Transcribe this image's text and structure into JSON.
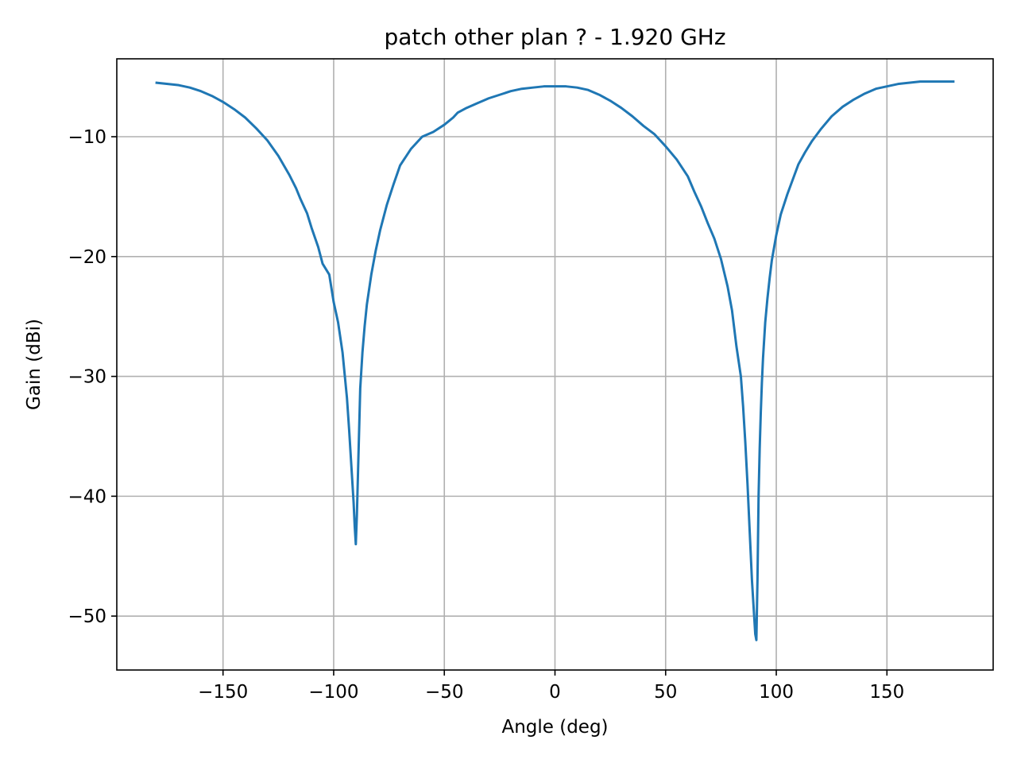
{
  "chart_data": {
    "type": "line",
    "title": "patch other plan ? - 1.920 GHz",
    "xlabel": "Angle (deg)",
    "ylabel": "Gain (dBi)",
    "xlim": [
      -198,
      198
    ],
    "ylim": [
      -54.5,
      -3.5
    ],
    "xticks": [
      -150,
      -100,
      -50,
      0,
      50,
      100,
      150
    ],
    "yticks": [
      -10,
      -20,
      -30,
      -40,
      -50
    ],
    "xtick_labels": [
      "−150",
      "−100",
      "−50",
      "0",
      "50",
      "100",
      "150"
    ],
    "ytick_labels": [
      "−10",
      "−20",
      "−30",
      "−40",
      "−50"
    ],
    "grid": true,
    "line_color": "#1f77b4",
    "grid_color": "#b0b0b0",
    "series": [
      {
        "x": [
          -180,
          -175,
          -170,
          -165,
          -160,
          -155,
          -150,
          -145,
          -140,
          -135,
          -130,
          -125,
          -120,
          -117,
          -115,
          -112,
          -110,
          -107,
          -105,
          -102,
          -100,
          -98,
          -96,
          -94,
          -93,
          -92,
          -91,
          -90.5,
          -90,
          -89.5,
          -89,
          -88.5,
          -88,
          -87,
          -86,
          -85,
          -83,
          -81,
          -79,
          -76,
          -73,
          -70,
          -65,
          -60,
          -55,
          -50,
          -48,
          -46,
          -44,
          -42,
          -40,
          -35,
          -30,
          -25,
          -20,
          -15,
          -10,
          -5,
          0,
          5,
          10,
          15,
          20,
          25,
          30,
          35,
          40,
          45,
          50,
          55,
          60,
          63,
          66,
          69,
          72,
          75,
          78,
          80,
          82,
          84,
          85,
          86,
          87,
          88,
          89,
          90,
          90.5,
          91,
          91.5,
          92,
          92.5,
          93,
          93.5,
          94,
          95,
          96,
          97,
          98,
          100,
          102,
          105,
          108,
          110,
          113,
          116,
          120,
          125,
          130,
          135,
          140,
          145,
          150,
          155,
          160,
          165,
          170,
          175,
          180
        ],
        "y": [
          -5.5,
          -5.6,
          -5.7,
          -5.9,
          -6.2,
          -6.6,
          -7.1,
          -7.7,
          -8.4,
          -9.3,
          -10.3,
          -11.6,
          -13.2,
          -14.3,
          -15.2,
          -16.4,
          -17.6,
          -19.2,
          -20.6,
          -21.5,
          -23.8,
          -25.5,
          -28.0,
          -31.8,
          -34.5,
          -37.5,
          -40.5,
          -42.5,
          -44.0,
          -41.5,
          -38.0,
          -34.5,
          -31.0,
          -28.0,
          -25.8,
          -24.0,
          -21.5,
          -19.5,
          -17.8,
          -15.7,
          -14.0,
          -12.4,
          -11.0,
          -10.0,
          -9.6,
          -9.0,
          -8.7,
          -8.4,
          -8.0,
          -7.8,
          -7.6,
          -7.2,
          -6.8,
          -6.5,
          -6.2,
          -6.0,
          -5.9,
          -5.8,
          -5.8,
          -5.8,
          -5.9,
          -6.1,
          -6.5,
          -7.0,
          -7.6,
          -8.3,
          -9.1,
          -9.8,
          -10.8,
          -11.9,
          -13.3,
          -14.6,
          -15.8,
          -17.2,
          -18.5,
          -20.2,
          -22.5,
          -24.5,
          -27.5,
          -30.0,
          -32.5,
          -35.5,
          -39.0,
          -43.0,
          -47.0,
          -50.0,
          -51.5,
          -52.0,
          -47.0,
          -40.0,
          -36.0,
          -33.0,
          -30.5,
          -28.5,
          -25.5,
          -23.5,
          -21.8,
          -20.3,
          -18.2,
          -16.5,
          -14.8,
          -13.3,
          -12.3,
          -11.3,
          -10.4,
          -9.4,
          -8.3,
          -7.5,
          -6.9,
          -6.4,
          -6.0,
          -5.8,
          -5.6,
          -5.5,
          -5.4,
          -5.4,
          -5.4,
          -5.4
        ]
      }
    ]
  }
}
